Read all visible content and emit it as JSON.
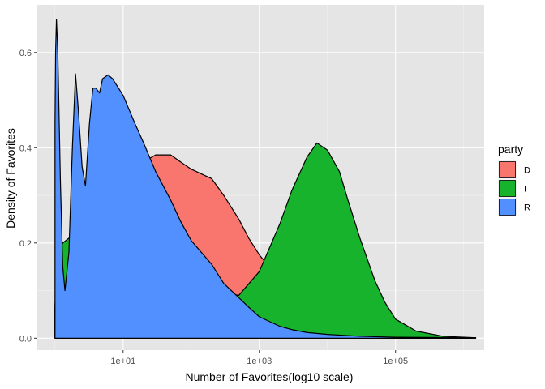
{
  "chart_data": {
    "type": "area",
    "xlabel": "Number of Favorites(log10 scale)",
    "ylabel": "Density of Favorites",
    "x_scale": "log10",
    "x_ticks": [
      10,
      1000,
      100000
    ],
    "x_tick_labels": [
      "1e+01",
      "1e+03",
      "1e+05"
    ],
    "y_ticks": [
      0.0,
      0.2,
      0.4,
      0.6
    ],
    "y_tick_labels": [
      "0.0",
      "0.2",
      "0.4",
      "0.6"
    ],
    "xlim": [
      0.55,
      2000000
    ],
    "ylim": [
      -0.025,
      0.7
    ],
    "panel_background": "#e5e5e5",
    "grid": true,
    "legend": {
      "title": "party",
      "position": "right"
    },
    "series": [
      {
        "name": "D",
        "color": "#f8766d",
        "points": [
          [
            1,
            0
          ],
          [
            1,
            0.07
          ],
          [
            1.1,
            0.17
          ],
          [
            1.3,
            0.2
          ],
          [
            1.6,
            0.21
          ],
          [
            2,
            0.22
          ],
          [
            3,
            0.25
          ],
          [
            5,
            0.29
          ],
          [
            10,
            0.33
          ],
          [
            20,
            0.37
          ],
          [
            30,
            0.385
          ],
          [
            50,
            0.385
          ],
          [
            70,
            0.37
          ],
          [
            100,
            0.355
          ],
          [
            200,
            0.335
          ],
          [
            300,
            0.3
          ],
          [
            500,
            0.25
          ],
          [
            700,
            0.21
          ],
          [
            1000,
            0.175
          ],
          [
            1500,
            0.145
          ],
          [
            2000,
            0.12
          ],
          [
            3000,
            0.095
          ],
          [
            5000,
            0.07
          ],
          [
            7000,
            0.055
          ],
          [
            10000,
            0.04
          ],
          [
            20000,
            0.02
          ],
          [
            50000,
            0.008
          ],
          [
            100000,
            0.004
          ],
          [
            300000,
            0.002
          ],
          [
            1500000,
            0.001
          ],
          [
            1500000,
            0
          ]
        ]
      },
      {
        "name": "I",
        "color": "#18b32d",
        "points": [
          [
            1,
            0
          ],
          [
            1,
            0.06
          ],
          [
            1.1,
            0.18
          ],
          [
            1.3,
            0.2
          ],
          [
            1.6,
            0.21
          ],
          [
            2,
            0.22
          ],
          [
            5,
            0.2
          ],
          [
            20,
            0.16
          ],
          [
            100,
            0.12
          ],
          [
            300,
            0.095
          ],
          [
            500,
            0.09
          ],
          [
            1000,
            0.14
          ],
          [
            2000,
            0.24
          ],
          [
            3000,
            0.31
          ],
          [
            5000,
            0.38
          ],
          [
            7000,
            0.41
          ],
          [
            10000,
            0.395
          ],
          [
            15000,
            0.35
          ],
          [
            20000,
            0.29
          ],
          [
            30000,
            0.21
          ],
          [
            50000,
            0.12
          ],
          [
            70000,
            0.075
          ],
          [
            100000,
            0.04
          ],
          [
            200000,
            0.015
          ],
          [
            500000,
            0.004
          ],
          [
            1500000,
            0.001
          ],
          [
            1500000,
            0
          ]
        ]
      },
      {
        "name": "R",
        "color": "#5190fe",
        "points": [
          [
            1,
            0
          ],
          [
            1,
            0.45
          ],
          [
            1.02,
            0.6
          ],
          [
            1.05,
            0.67
          ],
          [
            1.1,
            0.6
          ],
          [
            1.2,
            0.33
          ],
          [
            1.3,
            0.15
          ],
          [
            1.4,
            0.1
          ],
          [
            1.6,
            0.18
          ],
          [
            1.8,
            0.4
          ],
          [
            2,
            0.555
          ],
          [
            2.2,
            0.48
          ],
          [
            2.5,
            0.36
          ],
          [
            2.8,
            0.32
          ],
          [
            3.2,
            0.45
          ],
          [
            3.6,
            0.525
          ],
          [
            4,
            0.525
          ],
          [
            4.5,
            0.515
          ],
          [
            5,
            0.545
          ],
          [
            6,
            0.553
          ],
          [
            7,
            0.545
          ],
          [
            10,
            0.51
          ],
          [
            15,
            0.45
          ],
          [
            20,
            0.41
          ],
          [
            30,
            0.35
          ],
          [
            50,
            0.29
          ],
          [
            70,
            0.245
          ],
          [
            100,
            0.205
          ],
          [
            200,
            0.155
          ],
          [
            300,
            0.115
          ],
          [
            500,
            0.085
          ],
          [
            700,
            0.065
          ],
          [
            1000,
            0.045
          ],
          [
            2000,
            0.025
          ],
          [
            3000,
            0.018
          ],
          [
            5000,
            0.012
          ],
          [
            10000,
            0.008
          ],
          [
            30000,
            0.004
          ],
          [
            100000,
            0.002
          ],
          [
            1500000,
            0.001
          ],
          [
            1500000,
            0
          ]
        ]
      }
    ]
  }
}
